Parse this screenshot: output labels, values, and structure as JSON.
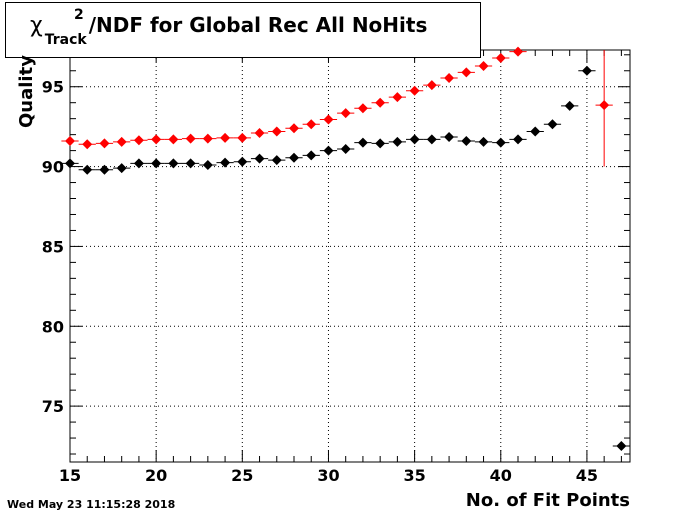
{
  "chart_data": {
    "type": "scatter",
    "title": {
      "symbol": "χ",
      "superscript": "2",
      "subscript": "Track",
      "text": "/NDF for Global Rec All NoHits"
    },
    "xlabel": "No. of Fit Points",
    "ylabel": "Quality",
    "xlim": [
      15,
      47.5
    ],
    "ylim": [
      71.5,
      97.3
    ],
    "x_ticks": [
      15,
      20,
      25,
      30,
      35,
      40,
      45
    ],
    "y_ticks": [
      75,
      80,
      85,
      90,
      95
    ],
    "grid": true,
    "series": [
      {
        "color": "#000000",
        "points": [
          [
            15,
            90.2
          ],
          [
            16,
            89.8
          ],
          [
            17,
            89.8
          ],
          [
            18,
            89.9
          ],
          [
            19,
            90.2
          ],
          [
            20,
            90.2
          ],
          [
            21,
            90.2
          ],
          [
            22,
            90.2
          ],
          [
            23,
            90.1
          ],
          [
            24,
            90.25
          ],
          [
            25,
            90.3
          ],
          [
            26,
            90.5
          ],
          [
            27,
            90.4
          ],
          [
            28,
            90.55
          ],
          [
            29,
            90.7
          ],
          [
            30,
            91.0
          ],
          [
            31,
            91.1
          ],
          [
            32,
            91.5
          ],
          [
            33,
            91.45
          ],
          [
            34,
            91.55
          ],
          [
            35,
            91.7
          ],
          [
            36,
            91.7
          ],
          [
            37,
            91.85
          ],
          [
            38,
            91.6
          ],
          [
            39,
            91.55
          ],
          [
            40,
            91.5
          ],
          [
            41,
            91.7
          ],
          [
            42,
            92.2
          ],
          [
            43,
            92.65
          ],
          [
            44,
            93.8
          ],
          [
            45,
            96.0
          ],
          [
            47,
            72.5
          ]
        ],
        "y_errors": {}
      },
      {
        "color": "#ff0000",
        "points": [
          [
            15,
            91.6
          ],
          [
            16,
            91.4
          ],
          [
            17,
            91.45
          ],
          [
            18,
            91.55
          ],
          [
            19,
            91.65
          ],
          [
            20,
            91.7
          ],
          [
            21,
            91.7
          ],
          [
            22,
            91.75
          ],
          [
            23,
            91.75
          ],
          [
            24,
            91.8
          ],
          [
            25,
            91.8
          ],
          [
            26,
            92.1
          ],
          [
            27,
            92.2
          ],
          [
            28,
            92.4
          ],
          [
            29,
            92.65
          ],
          [
            30,
            92.95
          ],
          [
            31,
            93.35
          ],
          [
            32,
            93.65
          ],
          [
            33,
            94.0
          ],
          [
            34,
            94.35
          ],
          [
            35,
            94.75
          ],
          [
            36,
            95.1
          ],
          [
            37,
            95.55
          ],
          [
            38,
            95.9
          ],
          [
            39,
            96.3
          ],
          [
            40,
            96.8
          ],
          [
            41,
            97.2
          ],
          [
            46,
            93.85
          ]
        ],
        "y_errors": {
          "46": [
            90.0,
            97.3
          ]
        }
      }
    ]
  },
  "footer": {
    "timestamp": "Wed May 23 11:15:28 2018"
  }
}
